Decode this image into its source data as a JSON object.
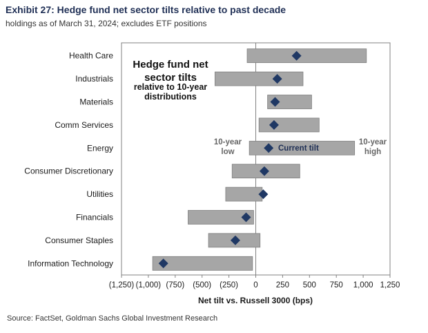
{
  "header": {
    "title": "Exhibit 27: Hedge fund net sector tilts relative to past decade",
    "subtitle": "holdings as of March 31, 2024; excludes ETF positions"
  },
  "footer": {
    "source": "Source: FactSet, Goldman Sachs Global Investment Research"
  },
  "colors": {
    "range_bar": "#a6a6a6",
    "range_bar_edge": "#7f7f7f",
    "marker": "#1f3864",
    "axis": "#808080"
  },
  "chart_data": {
    "type": "bar",
    "subtype": "horizontal floating range bars with current-tilt markers",
    "xlabel": "Net tilt vs. Russell 3000 (bps)",
    "xlim": [
      -1250,
      1250
    ],
    "xticks": [
      -1250,
      -1000,
      -750,
      -500,
      -250,
      0,
      250,
      500,
      750,
      1000,
      1250
    ],
    "xtick_labels": [
      "(1,250)",
      "(1,000)",
      "(750)",
      "(500)",
      "(250)",
      "0",
      "250",
      "500",
      "750",
      "1,000",
      "1,250"
    ],
    "categories": [
      "Health Care",
      "Industrials",
      "Materials",
      "Comm Services",
      "Energy",
      "Consumer Discretionary",
      "Utilities",
      "Financials",
      "Consumer Staples",
      "Information Technology"
    ],
    "series": [
      {
        "name": "10-year low",
        "values": [
          -80,
          -380,
          110,
          30,
          -60,
          -220,
          -280,
          -630,
          -440,
          -960
        ]
      },
      {
        "name": "10-year high",
        "values": [
          1030,
          440,
          520,
          590,
          920,
          410,
          60,
          -20,
          40,
          -30
        ]
      },
      {
        "name": "Current tilt",
        "values": [
          380,
          200,
          180,
          170,
          120,
          80,
          70,
          -90,
          -190,
          -860
        ]
      }
    ],
    "grid": false,
    "annotations": {
      "callout_line1": "Hedge fund net",
      "callout_line2": "sector tilts",
      "callout_line3": "relative to 10-year",
      "callout_line4": "distributions",
      "low_line1": "10-year",
      "low_line2": "low",
      "high_line1": "10-year",
      "high_line2": "high",
      "current": "Current tilt"
    }
  }
}
